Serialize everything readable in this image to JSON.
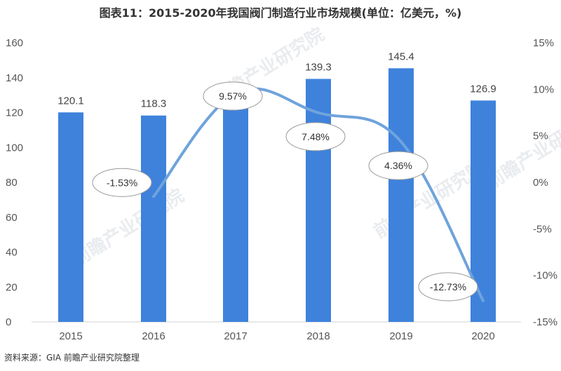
{
  "chart_data": {
    "type": "bar",
    "title": "图表11：2015-2020年我国阀门制造行业市场规模(单位：亿美元，%)",
    "categories": [
      "2015",
      "2016",
      "2017",
      "2018",
      "2019",
      "2020"
    ],
    "series": [
      {
        "values": [
          120.1,
          118.3,
          134.3,
          139.3,
          145.4,
          126.9
        ],
        "type": "bar",
        "color": "#3e82dc",
        "labels": [
          "120.1",
          "118.3",
          "",
          "139.3",
          "145.4",
          "126.9"
        ]
      },
      {
        "values": [
          null,
          -1.53,
          9.57,
          7.48,
          4.36,
          -12.73
        ],
        "type": "line",
        "axis": "right",
        "color": "#6fa3dc",
        "labels": [
          "",
          "-1.53%",
          "9.57%",
          "7.48%",
          "4.36%",
          "-12.73%"
        ]
      }
    ],
    "left_axis": {
      "ylim": [
        0,
        160
      ],
      "ticks": [
        "0",
        "20",
        "40",
        "60",
        "80",
        "100",
        "120",
        "140",
        "160"
      ]
    },
    "right_axis": {
      "ylim": [
        -15,
        15
      ],
      "ticks": [
        "-15%",
        "-10%",
        "-5%",
        "0%",
        "5%",
        "10%",
        "15%"
      ]
    },
    "grid": false,
    "source": "资料来源：GIA 前瞻产业研究院整理",
    "watermark": "前瞻产业研究院"
  }
}
